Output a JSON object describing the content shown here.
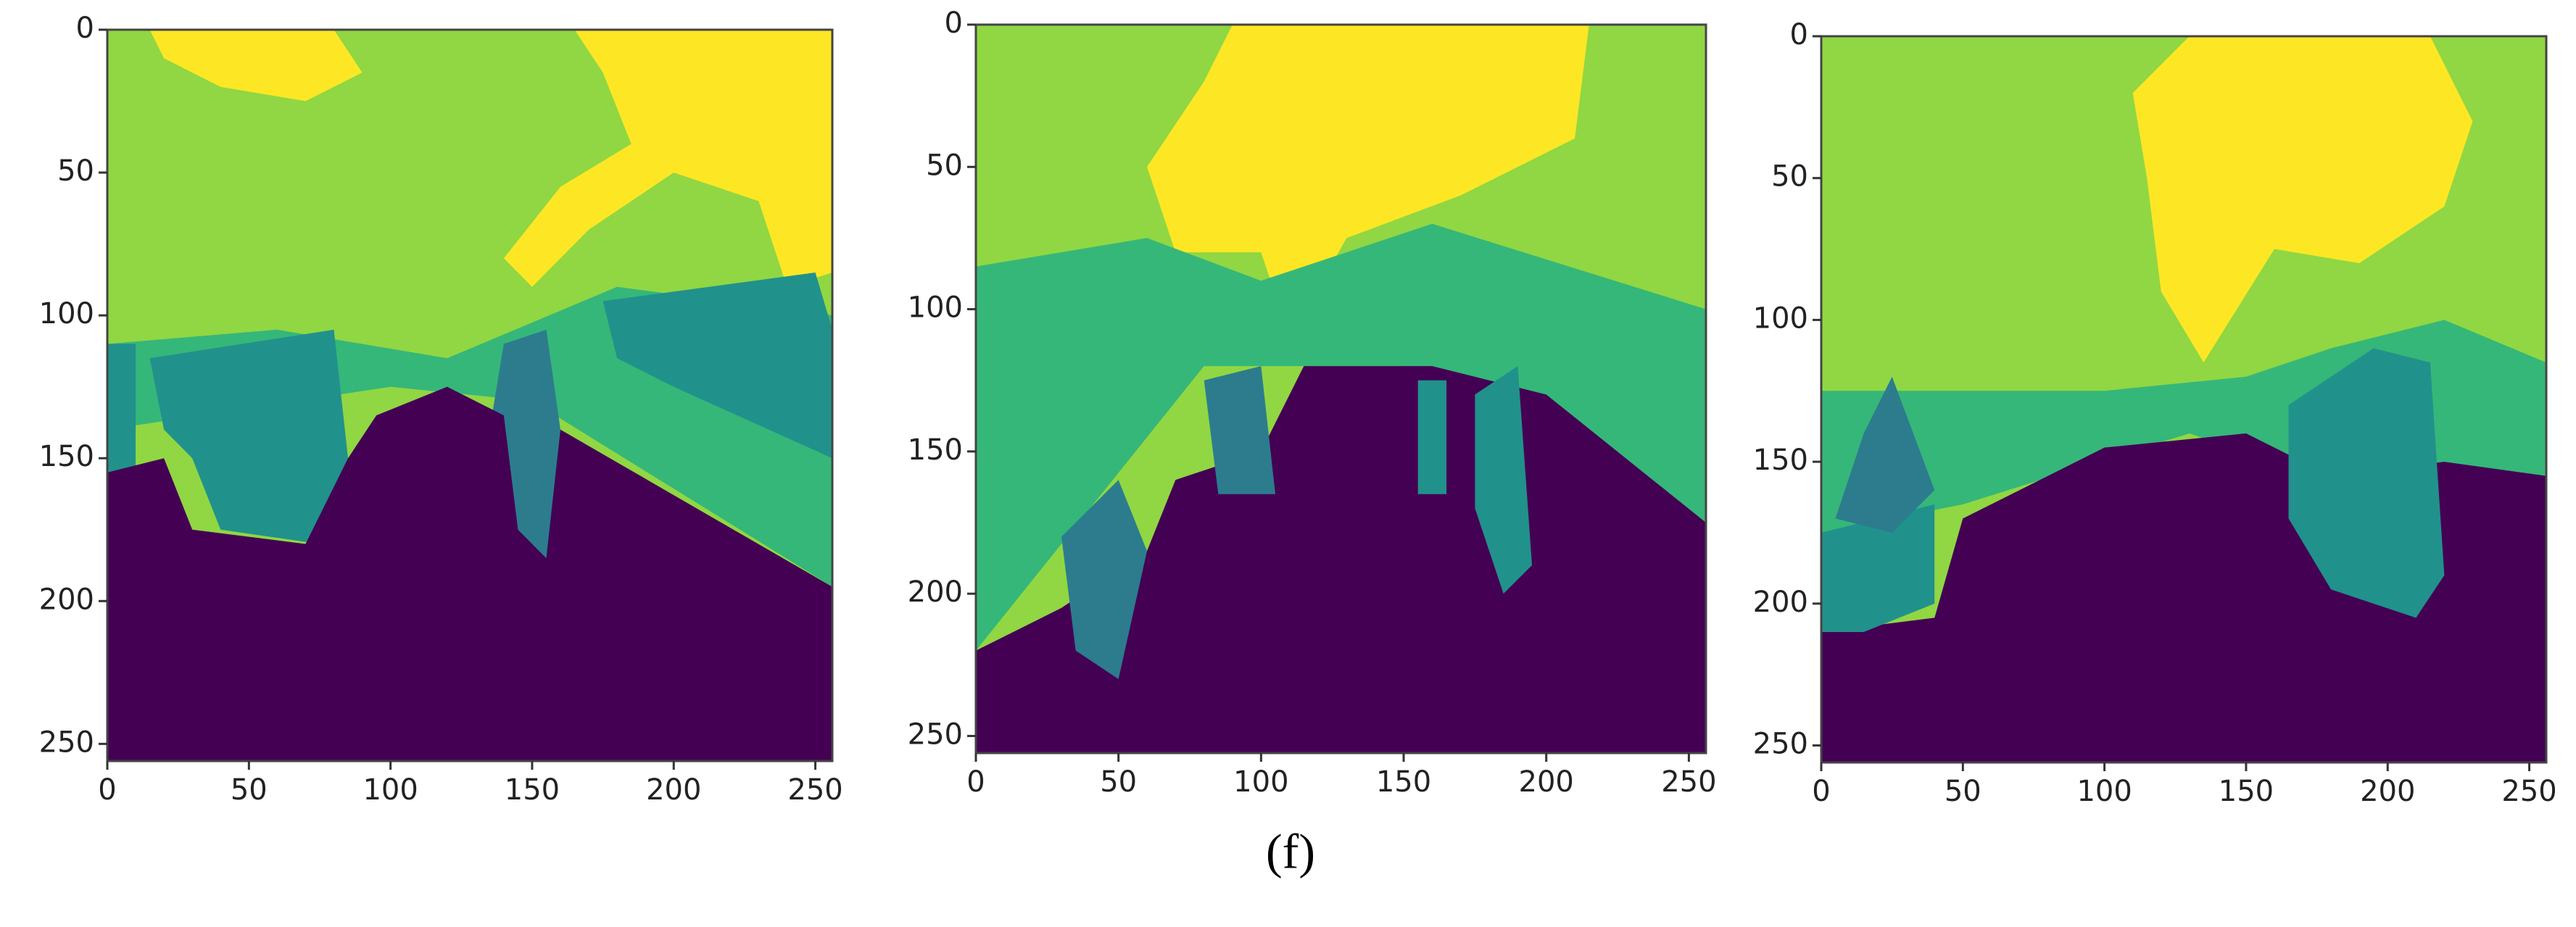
{
  "chart_data": [
    {
      "type": "image",
      "xlim": [
        0,
        256
      ],
      "ylim": [
        256,
        0
      ],
      "xticks": [
        0,
        50,
        100,
        150,
        200,
        250
      ],
      "yticks": [
        0,
        50,
        100,
        150,
        200,
        250
      ]
    },
    {
      "type": "image",
      "xlim": [
        0,
        256
      ],
      "ylim": [
        256,
        0
      ],
      "xticks": [
        0,
        50,
        100,
        150,
        200,
        250
      ],
      "yticks": [
        0,
        50,
        100,
        150,
        200,
        250
      ]
    },
    {
      "type": "image",
      "xlim": [
        0,
        256
      ],
      "ylim": [
        256,
        0
      ],
      "xticks": [
        0,
        50,
        100,
        150,
        200,
        250
      ],
      "yticks": [
        0,
        50,
        100,
        150,
        200,
        250
      ]
    }
  ],
  "caption": "(f)"
}
